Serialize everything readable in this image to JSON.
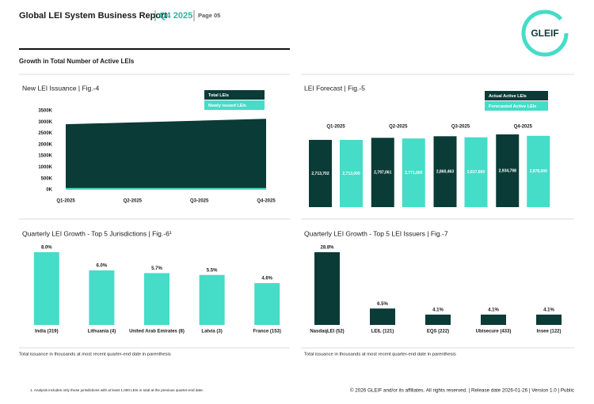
{
  "header": {
    "title": "Global LEI System Business Report",
    "quarter": "Q4 2025",
    "page": "Page 05"
  },
  "logo": "GLEIF",
  "section_title": "Growth in Total Number of Active LEIs",
  "chart_data": [
    {
      "type": "area",
      "title": "New LEI Issuance | Fig.-4",
      "categories": [
        "Q1-2025",
        "Q2-2025",
        "Q3-2025",
        "Q4-2025"
      ],
      "series": [
        {
          "name": "Total LEIs",
          "color": "#0b3b36",
          "values": [
            2900000,
            2980000,
            3060000,
            3140000
          ]
        },
        {
          "name": "Newly issued LEIs",
          "color": "#45dcc8",
          "values": [
            80000,
            80000,
            80000,
            80000
          ]
        }
      ],
      "ylim": [
        0,
        3500000
      ],
      "yticks": [
        {
          "value": 0,
          "label": "0K"
        },
        {
          "value": 500000,
          "label": "500K"
        },
        {
          "value": 1000000,
          "label": "1000K"
        },
        {
          "value": 1500000,
          "label": "1500K"
        },
        {
          "value": 2000000,
          "label": "2000K"
        },
        {
          "value": 2500000,
          "label": "2500K"
        },
        {
          "value": 3000000,
          "label": "3000K"
        },
        {
          "value": 3500000,
          "label": "3500K"
        }
      ]
    },
    {
      "type": "grouped-bar",
      "title": "LEI Forecast | Fig.-5",
      "categories": [
        "Q1-2025",
        "Q2-2025",
        "Q3-2025",
        "Q4-2025"
      ],
      "series": [
        {
          "name": "Actual Active LEIs",
          "color": "#0b3b36",
          "values": [
            2713702,
            2797061,
            2860463,
            2934798
          ],
          "value_labels": [
            "2,713,702",
            "2,797,061",
            "2,860,463",
            "2,934,798"
          ]
        },
        {
          "name": "Forecasted Active LEIs",
          "color": "#45dcc8",
          "values": [
            2713000,
            2771000,
            2817000,
            2878000
          ],
          "value_labels": [
            "2,713,000",
            "2,771,000",
            "2,817,000",
            "2,878,000"
          ]
        }
      ]
    },
    {
      "type": "bar",
      "title": "Quarterly LEI Growth - Top 5 Jurisdictions | Fig.-6¹",
      "categories": [
        "India (319)",
        "Lithuania (4)",
        "United Arab Emirates (8)",
        "Latvia (3)",
        "France (153)"
      ],
      "values": [
        8.0,
        6.0,
        5.7,
        5.5,
        4.6
      ],
      "value_labels": [
        "8.0%",
        "6.0%",
        "5.7%",
        "5.5%",
        "4.6%"
      ],
      "color": "#45dcc8",
      "note": "Total issuance in thousands at most recent quarter-end date in parenthesis"
    },
    {
      "type": "bar",
      "title": "Quarterly LEI Growth - Top 5 LEI Issuers | Fig.-7",
      "categories": [
        "NasdaqLEI (52)",
        "LEIL (121)",
        "EQS (222)",
        "Ubisecure (433)",
        "Insee (122)"
      ],
      "values": [
        28.8,
        6.5,
        4.1,
        4.1,
        4.1
      ],
      "value_labels": [
        "28.8%",
        "6.5%",
        "4.1%",
        "4.1%",
        "4.1%"
      ],
      "color": "#0b3b36",
      "note": "Total issuance in thousands at most recent quarter-end date in parenthesis"
    }
  ],
  "footer": {
    "footnote": "1. Analysis includes only those jurisdictions with at least 1,000 LEIs in total at the previous quarter-end date.",
    "copyright": "© 2026 GLEIF and/or its affiliates. All rights reserved. | Release date 2026-01-26 | Version 1.0 | Public"
  }
}
